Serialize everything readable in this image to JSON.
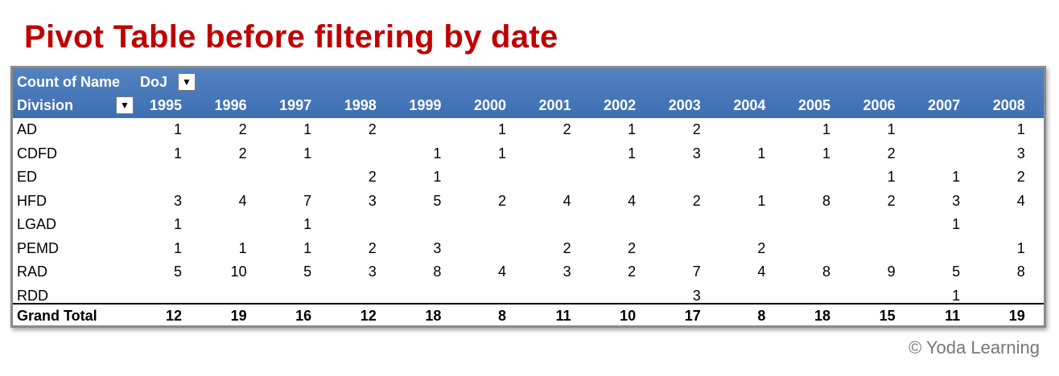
{
  "title": "Pivot Table before filtering by date",
  "credit": "© Yoda Learning",
  "colors": {
    "title": "#c00000",
    "header_bg": "#4472c4"
  },
  "pivot": {
    "value_field": "Count of Name",
    "column_field": "DoJ",
    "row_field": "Division",
    "filter_icon": "dropdown-arrow-icon",
    "years": [
      "1995",
      "1996",
      "1997",
      "1998",
      "1999",
      "2000",
      "2001",
      "2002",
      "2003",
      "2004",
      "2005",
      "2006",
      "2007",
      "2008"
    ],
    "rows": [
      {
        "label": "AD",
        "values": [
          "1",
          "2",
          "1",
          "2",
          "",
          "1",
          "2",
          "1",
          "2",
          "",
          "1",
          "1",
          "",
          "1"
        ]
      },
      {
        "label": "CDFD",
        "values": [
          "1",
          "2",
          "1",
          "",
          "1",
          "1",
          "",
          "1",
          "3",
          "1",
          "1",
          "2",
          "",
          "3"
        ]
      },
      {
        "label": "ED",
        "values": [
          "",
          "",
          "",
          "2",
          "1",
          "",
          "",
          "",
          "",
          "",
          "",
          "1",
          "1",
          "2"
        ]
      },
      {
        "label": "HFD",
        "values": [
          "3",
          "4",
          "7",
          "3",
          "5",
          "2",
          "4",
          "4",
          "2",
          "1",
          "8",
          "2",
          "3",
          "4"
        ]
      },
      {
        "label": "LGAD",
        "values": [
          "1",
          "",
          "1",
          "",
          "",
          "",
          "",
          "",
          "",
          "",
          "",
          "",
          "1",
          ""
        ]
      },
      {
        "label": "PEMD",
        "values": [
          "1",
          "1",
          "1",
          "2",
          "3",
          "",
          "2",
          "2",
          "",
          "2",
          "",
          "",
          "",
          "1"
        ]
      },
      {
        "label": "RAD",
        "values": [
          "5",
          "10",
          "5",
          "3",
          "8",
          "4",
          "3",
          "2",
          "7",
          "4",
          "8",
          "9",
          "5",
          "8"
        ]
      },
      {
        "label": "RDD",
        "values": [
          "",
          "",
          "",
          "",
          "",
          "",
          "",
          "",
          "3",
          "",
          "",
          "",
          "1",
          ""
        ]
      }
    ],
    "grand_total": {
      "label": "Grand Total",
      "values": [
        "12",
        "19",
        "16",
        "12",
        "18",
        "8",
        "11",
        "10",
        "17",
        "8",
        "18",
        "15",
        "11",
        "19"
      ]
    }
  }
}
